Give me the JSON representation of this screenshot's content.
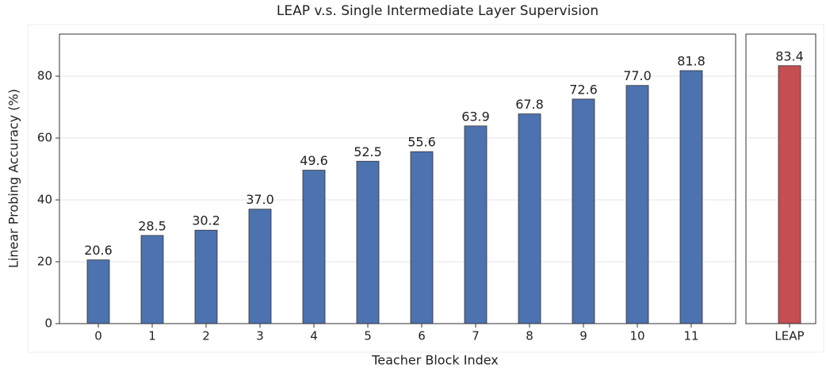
{
  "chart_data": [
    {
      "type": "bar",
      "title": "LEAP v.s. Single Intermediate Layer Supervision",
      "xlabel": "Teacher Block Index",
      "ylabel": "Linear Probing Accuracy (%)",
      "categories": [
        "0",
        "1",
        "2",
        "3",
        "4",
        "5",
        "6",
        "7",
        "8",
        "9",
        "10",
        "11"
      ],
      "values": [
        20.6,
        28.5,
        30.2,
        37,
        49.6,
        52.5,
        55.6,
        63.9,
        67.8,
        72.6,
        77,
        81.8
      ],
      "value_labels": [
        "20.6",
        "28.5",
        "30.2",
        "37.0",
        "49.6",
        "52.5",
        "55.6",
        "63.9",
        "67.8",
        "72.6",
        "77.0",
        "81.8"
      ],
      "color": "#4c72b0",
      "ylim": [
        0,
        93.6
      ],
      "yticks": [
        0,
        20,
        40,
        60,
        80
      ],
      "grid": true
    },
    {
      "type": "bar",
      "categories": [
        "LEAP"
      ],
      "values": [
        83.4
      ],
      "value_labels": [
        "83.4"
      ],
      "color": "#c44e52",
      "ylim": [
        0,
        93.6
      ],
      "yticks": [
        0,
        20,
        40,
        60,
        80
      ],
      "grid": true
    }
  ]
}
